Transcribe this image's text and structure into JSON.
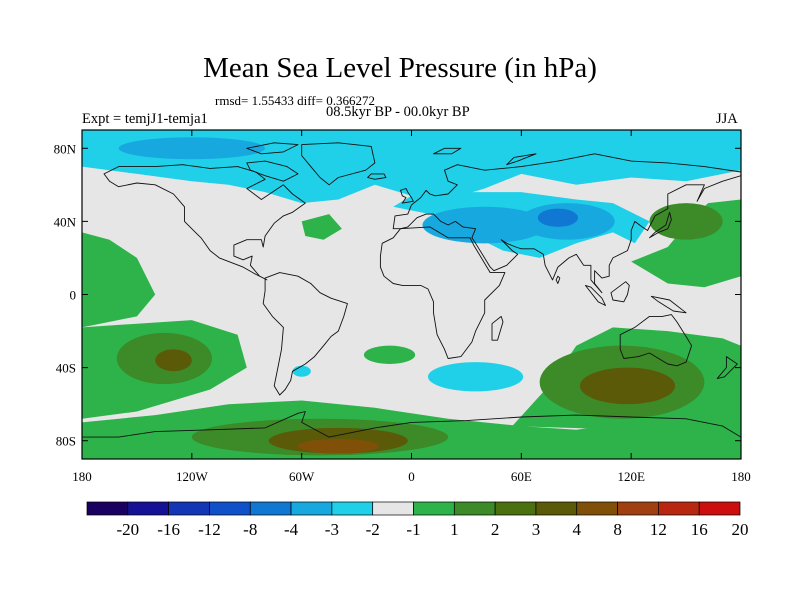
{
  "title": "Mean Sea Level Pressure (in hPa)",
  "stats": "rmsd= 1.55433 diff= 0.366272",
  "experiment": "Expt = temjJ1-temja1",
  "period": "08.5kyr BP - 00.0kyr BP",
  "season": "JJA",
  "x_axis": {
    "ticks": [
      {
        "lon": -180,
        "label": "180"
      },
      {
        "lon": -120,
        "label": "120W"
      },
      {
        "lon": -60,
        "label": "60W"
      },
      {
        "lon": 0,
        "label": "0"
      },
      {
        "lon": 60,
        "label": "60E"
      },
      {
        "lon": 120,
        "label": "120E"
      },
      {
        "lon": 180,
        "label": "180"
      }
    ]
  },
  "y_axis": {
    "ticks": [
      {
        "lat": 80,
        "label": "80N"
      },
      {
        "lat": 40,
        "label": "40N"
      },
      {
        "lat": 0,
        "label": "0"
      },
      {
        "lat": -40,
        "label": "40S"
      },
      {
        "lat": -80,
        "label": "80S"
      }
    ]
  },
  "colorbar": {
    "colors": [
      "#1a0060",
      "#161296",
      "#1236b4",
      "#1050c8",
      "#1078d2",
      "#18a8e0",
      "#20d0e8",
      "#e6e6e6",
      "#2db34a",
      "#3c8a28",
      "#4a7010",
      "#5a5a08",
      "#805008",
      "#a04010",
      "#b82810",
      "#cc0e0e"
    ],
    "labels": [
      "-20",
      "-16",
      "-12",
      "-8",
      "-4",
      "-3",
      "-2",
      "-1",
      "1",
      "2",
      "3",
      "4",
      "8",
      "12",
      "16",
      "20"
    ]
  },
  "map_colors": {
    "neutral": "#e6e6e6",
    "pos1": "#2db34a",
    "pos2": "#3c8a28",
    "pos3": "#5a5a08",
    "pos4": "#805008",
    "neg1": "#20d0e8",
    "neg2": "#18a8e0",
    "neg3": "#1078d2",
    "coast": "#111111"
  }
}
